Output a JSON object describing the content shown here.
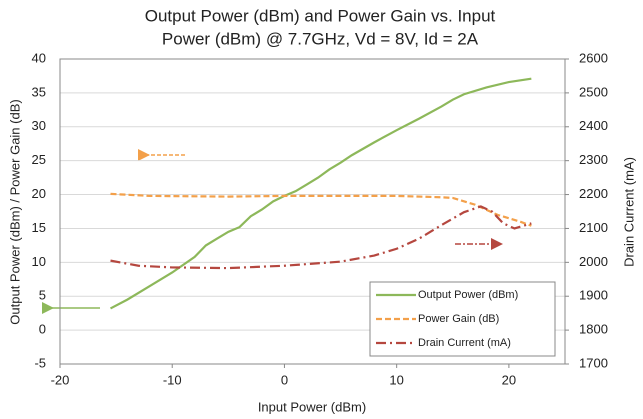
{
  "chart_data": {
    "type": "line",
    "title": [
      "Output Power (dBm) and Power Gain vs. Input",
      "Power (dBm) @ 7.7GHz, Vd = 8V, Id = 2A"
    ],
    "x_label": "Input Power (dBm)",
    "y_label": "Output Power (dBm) / Power Gain (dB)",
    "y2_label": "Drain Current (mA)",
    "xlim": [
      -20,
      25
    ],
    "xticks": [
      -20,
      -10,
      0,
      10,
      20
    ],
    "ylim": [
      -5,
      40
    ],
    "yticks": [
      -5,
      0,
      5,
      10,
      15,
      20,
      25,
      30,
      35,
      40
    ],
    "y2lim": [
      1700,
      2600
    ],
    "y2ticks": [
      1700,
      1800,
      1900,
      2000,
      2100,
      2200,
      2300,
      2400,
      2500,
      2600
    ],
    "grid": true,
    "legend": "lower right",
    "series": [
      {
        "name": "Output Power (dBm)",
        "color": "#8db85a",
        "style": "solid",
        "x": [
          -15.5,
          -14,
          -12,
          -10,
          -8,
          -7,
          -6,
          -5,
          -4,
          -3,
          -2,
          -1,
          0,
          1,
          2,
          3,
          4,
          5,
          6,
          8,
          10,
          12,
          14,
          15,
          16,
          18,
          20,
          22
        ],
        "values": [
          3.2,
          4.5,
          6.5,
          8.5,
          10.8,
          12.5,
          13.5,
          14.5,
          15.2,
          16.8,
          17.8,
          19.0,
          19.8,
          20.5,
          21.5,
          22.5,
          23.7,
          24.7,
          25.8,
          27.7,
          29.5,
          31.2,
          33,
          34,
          34.8,
          35.8,
          36.6,
          37.1
        ]
      },
      {
        "name": "Power Gain (dB)",
        "color": "#f3a04a",
        "style": "dashed",
        "x": [
          -15.5,
          -12,
          -5,
          0,
          10,
          14,
          15,
          17,
          19,
          21,
          22
        ],
        "values": [
          20.1,
          19.8,
          19.7,
          19.8,
          19.8,
          19.6,
          19.5,
          18.5,
          17,
          16,
          15.4
        ]
      },
      {
        "name": "Drain Current (mA)",
        "color": "#b5473f",
        "style": "dash-dot",
        "axis": "y2",
        "x": [
          -15.5,
          -13,
          -10,
          -5,
          0,
          5,
          8,
          10,
          12,
          14,
          16,
          17.5,
          18.5,
          19.5,
          20.5,
          22
        ],
        "values": [
          2005,
          1990,
          1985,
          1983,
          1990,
          2002,
          2020,
          2040,
          2070,
          2110,
          2148,
          2165,
          2150,
          2115,
          2100,
          2115
        ]
      }
    ]
  }
}
